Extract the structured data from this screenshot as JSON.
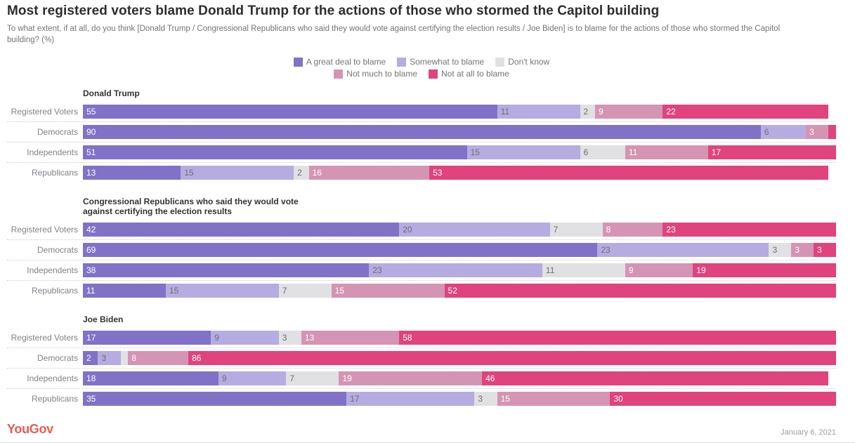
{
  "header": {
    "title": "Most registered voters blame Donald Trump for the actions of those who stormed the Capitol building",
    "subtitle": "To what extent, if at all, do you think [Donald Trump / Congressional Republicans who said they would vote against certifying the election results / Joe Biden] is to blame for the actions of those who stormed the Capitol building? (%)"
  },
  "legend": [
    {
      "label": "A great deal to blame",
      "color": "#8172c8",
      "text_color": "#ffffff"
    },
    {
      "label": "Somewhat to blame",
      "color": "#b6ace1",
      "text_color": "#6e6e6e"
    },
    {
      "label": "Don't know",
      "color": "#e1e0e2",
      "text_color": "#6e6e6e"
    },
    {
      "label": "Not much to blame",
      "color": "#d594b4",
      "text_color": "#ffffff"
    },
    {
      "label": "Not at all to blame",
      "color": "#e0437e",
      "text_color": "#ffffff"
    }
  ],
  "chart_data": {
    "type": "bar",
    "stacked": true,
    "orientation": "horizontal",
    "unit": "%",
    "xlim": [
      0,
      100
    ],
    "grid": false,
    "legend_position": "top-center",
    "series_labels": [
      "A great deal to blame",
      "Somewhat to blame",
      "Don't know",
      "Not much to blame",
      "Not at all to blame"
    ],
    "label_rule": "values below 2 are not labeled on bars",
    "sections": [
      {
        "title": "Donald Trump",
        "rows": [
          {
            "label": "Registered Voters",
            "values": [
              55,
              11,
              2,
              9,
              22
            ]
          },
          {
            "label": "Democrats",
            "values": [
              90,
              6,
              0,
              3,
              1
            ]
          },
          {
            "label": "Independents",
            "values": [
              51,
              15,
              6,
              11,
              17
            ]
          },
          {
            "label": "Republicans",
            "values": [
              13,
              15,
              2,
              16,
              53
            ]
          }
        ]
      },
      {
        "title": "Congressional Republicans who said they would vote against certifying the election results",
        "rows": [
          {
            "label": "Registered Voters",
            "values": [
              42,
              20,
              7,
              8,
              23
            ]
          },
          {
            "label": "Democrats",
            "values": [
              69,
              23,
              3,
              3,
              3
            ]
          },
          {
            "label": "Independents",
            "values": [
              38,
              23,
              11,
              9,
              19
            ]
          },
          {
            "label": "Republicans",
            "values": [
              11,
              15,
              7,
              15,
              52
            ]
          }
        ]
      },
      {
        "title": "Joe Biden",
        "rows": [
          {
            "label": "Registered Voters",
            "values": [
              17,
              9,
              3,
              13,
              58
            ]
          },
          {
            "label": "Democrats",
            "values": [
              2,
              3,
              1,
              8,
              86
            ]
          },
          {
            "label": "Independents",
            "values": [
              18,
              9,
              7,
              19,
              46
            ]
          },
          {
            "label": "Republicans",
            "values": [
              35,
              17,
              3,
              15,
              30
            ]
          }
        ]
      }
    ]
  },
  "footer": {
    "logo": "YouGov",
    "date": "January 6, 2021"
  }
}
